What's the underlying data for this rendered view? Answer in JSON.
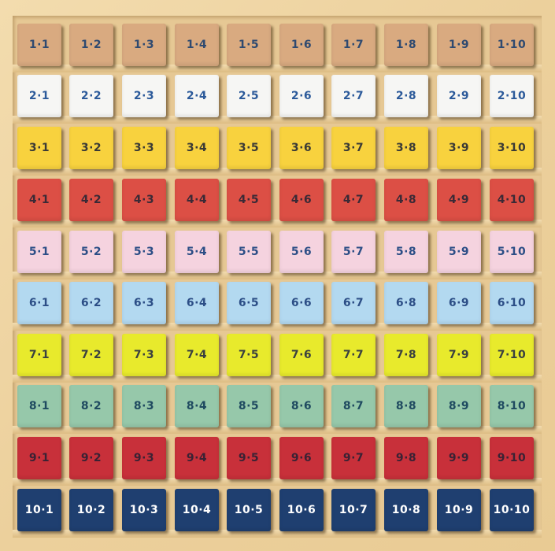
{
  "board": {
    "frame_color": "#ecd09c",
    "rows": [
      {
        "color": "#d9aa80",
        "text_color": "#2f4a70",
        "labels": [
          "1·1",
          "1·2",
          "1·3",
          "1·4",
          "1·5",
          "1·6",
          "1·7",
          "1·8",
          "1·9",
          "1·10"
        ]
      },
      {
        "color": "#f6f6f4",
        "text_color": "#2c5a9a",
        "labels": [
          "2·1",
          "2·2",
          "2·3",
          "2·4",
          "2·5",
          "2·6",
          "2·7",
          "2·8",
          "2·9",
          "2·10"
        ]
      },
      {
        "color": "#f8d23e",
        "text_color": "#3a3a36",
        "labels": [
          "3·1",
          "3·2",
          "3·3",
          "3·4",
          "3·5",
          "3·6",
          "3·7",
          "3·8",
          "3·9",
          "3·10"
        ]
      },
      {
        "color": "#dc4f45",
        "text_color": "#3a2a36",
        "labels": [
          "4·1",
          "4·2",
          "4·3",
          "4·4",
          "4·5",
          "4·6",
          "4·7",
          "4·8",
          "4·9",
          "4·10"
        ]
      },
      {
        "color": "#f5d3df",
        "text_color": "#2c4e86",
        "labels": [
          "5·1",
          "5·2",
          "5·3",
          "5·4",
          "5·5",
          "5·6",
          "5·7",
          "5·8",
          "5·9",
          "5·10"
        ]
      },
      {
        "color": "#b3d9f0",
        "text_color": "#2c4e86",
        "labels": [
          "6·1",
          "6·2",
          "6·3",
          "6·4",
          "6·5",
          "6·6",
          "6·7",
          "6·8",
          "6·9",
          "6·10"
        ]
      },
      {
        "color": "#e8ea2c",
        "text_color": "#3a4040",
        "labels": [
          "7·1",
          "7·2",
          "7·3",
          "7·4",
          "7·5",
          "7·6",
          "7·7",
          "7·8",
          "7·9",
          "7·10"
        ]
      },
      {
        "color": "#96c8aa",
        "text_color": "#1f4a60",
        "labels": [
          "8·1",
          "8·2",
          "8·3",
          "8·4",
          "8·5",
          "8·6",
          "8·7",
          "8·8",
          "8·9",
          "8·10"
        ]
      },
      {
        "color": "#c8303a",
        "text_color": "#3a2234",
        "labels": [
          "9·1",
          "9·2",
          "9·3",
          "9·4",
          "9·5",
          "9·6",
          "9·7",
          "9·8",
          "9·9",
          "9·10"
        ]
      },
      {
        "color": "#1f3f70",
        "text_color": "#ffffff",
        "labels": [
          "10·1",
          "10·2",
          "10·3",
          "10·4",
          "10·5",
          "10·6",
          "10·7",
          "10·8",
          "10·9",
          "10·10"
        ]
      }
    ]
  }
}
